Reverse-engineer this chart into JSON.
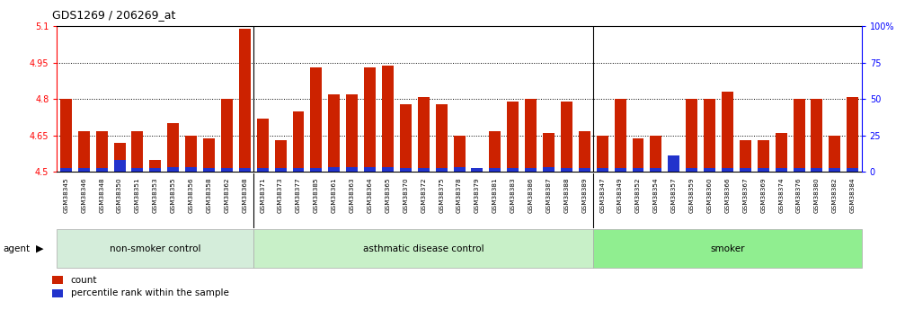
{
  "title": "GDS1269 / 206269_at",
  "categories": [
    "GSM38345",
    "GSM38346",
    "GSM38348",
    "GSM38350",
    "GSM38351",
    "GSM38353",
    "GSM38355",
    "GSM38356",
    "GSM38358",
    "GSM38362",
    "GSM38368",
    "GSM38371",
    "GSM38373",
    "GSM38377",
    "GSM38385",
    "GSM38361",
    "GSM38363",
    "GSM38364",
    "GSM38365",
    "GSM38370",
    "GSM38372",
    "GSM38375",
    "GSM38378",
    "GSM38379",
    "GSM38381",
    "GSM38383",
    "GSM38386",
    "GSM38387",
    "GSM38388",
    "GSM38389",
    "GSM38347",
    "GSM38349",
    "GSM38352",
    "GSM38354",
    "GSM38357",
    "GSM38359",
    "GSM38360",
    "GSM38366",
    "GSM38367",
    "GSM38369",
    "GSM38374",
    "GSM38376",
    "GSM38380",
    "GSM38382",
    "GSM38384"
  ],
  "red_values": [
    4.8,
    4.67,
    4.67,
    4.62,
    4.67,
    4.55,
    4.7,
    4.65,
    4.64,
    4.8,
    5.09,
    4.72,
    4.63,
    4.75,
    4.93,
    4.82,
    4.82,
    4.93,
    4.94,
    4.78,
    4.81,
    4.78,
    4.65,
    4.51,
    4.67,
    4.79,
    4.8,
    4.66,
    4.79,
    4.67,
    4.65,
    4.8,
    4.64,
    4.65,
    4.51,
    4.8,
    4.8,
    4.83,
    4.63,
    4.63,
    4.66,
    4.8,
    4.8,
    4.65,
    4.81
  ],
  "blue_values": [
    0.018,
    0.018,
    0.018,
    0.05,
    0.018,
    0.018,
    0.022,
    0.022,
    0.018,
    0.018,
    0.018,
    0.018,
    0.018,
    0.018,
    0.018,
    0.022,
    0.022,
    0.022,
    0.022,
    0.018,
    0.018,
    0.018,
    0.022,
    0.018,
    0.018,
    0.018,
    0.018,
    0.022,
    0.018,
    0.018,
    0.018,
    0.018,
    0.018,
    0.018,
    0.07,
    0.018,
    0.018,
    0.018,
    0.018,
    0.018,
    0.018,
    0.018,
    0.018,
    0.018,
    0.018
  ],
  "groups": [
    {
      "label": "non-smoker control",
      "start": 0,
      "end": 10,
      "color": "#d4edda"
    },
    {
      "label": "asthmatic disease control",
      "start": 11,
      "end": 29,
      "color": "#c8f0c8"
    },
    {
      "label": "smoker",
      "start": 30,
      "end": 44,
      "color": "#90ee90"
    }
  ],
  "group_sep": [
    10.5,
    29.5
  ],
  "ylim_left": [
    4.5,
    5.1
  ],
  "ylim_right": [
    0,
    100
  ],
  "yticks_left": [
    4.5,
    4.65,
    4.8,
    4.95,
    5.1
  ],
  "ytick_labels_left": [
    "4.5",
    "4.65",
    "4.8",
    "4.95",
    "5.1"
  ],
  "yticks_right": [
    0,
    25,
    50,
    75,
    100
  ],
  "ytick_labels_right": [
    "0",
    "25",
    "50",
    "75",
    "100%"
  ],
  "hgrid_lines": [
    4.65,
    4.8,
    4.95
  ],
  "bar_width": 0.65,
  "red_color": "#cc2200",
  "blue_color": "#2233cc",
  "base_value": 4.5,
  "xtick_bg_color": "#d0d0d0",
  "legend_items": [
    {
      "label": "count",
      "color": "#cc2200"
    },
    {
      "label": "percentile rank within the sample",
      "color": "#2233cc"
    }
  ],
  "figsize": [
    10.07,
    3.45
  ],
  "dpi": 100
}
